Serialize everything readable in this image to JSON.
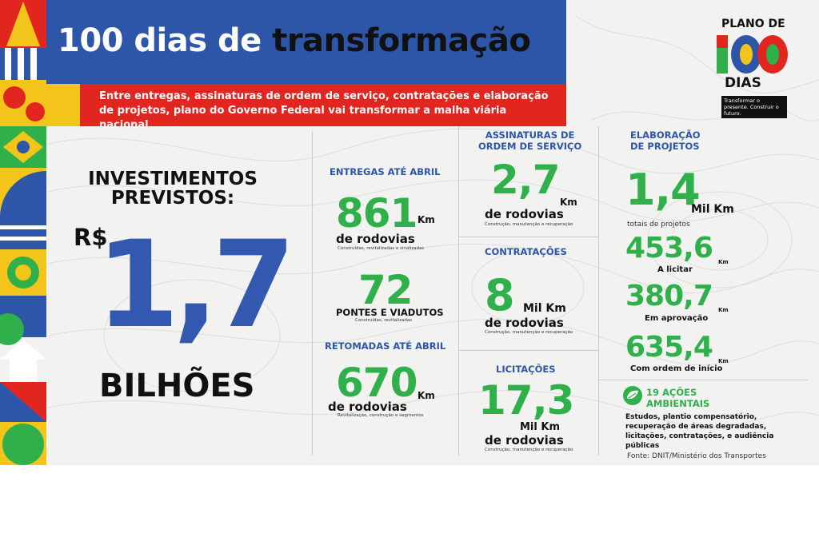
{
  "header": {
    "title_part1": "100 dias de",
    "title_part2": "transformação",
    "subtitle": "Entre entregas, assinaturas de ordem de serviço, contratações e elaboração de projetos, plano do Governo Federal vai transformar a malha viária nacional"
  },
  "logo": {
    "top": "PLANO DE",
    "number": "100",
    "bottom": "DIAS",
    "tagline": "Transformar o presente. Construir o futuro."
  },
  "investments": {
    "heading": "INVESTIMENTOS PREVISTOS:",
    "currency": "R$",
    "value": "1,7",
    "magnitude": "BILHÕES"
  },
  "col1": {
    "entregas_heading": "ENTREGAS ATÉ ABRIL",
    "entregas_value": "861",
    "entregas_unit": "Km",
    "entregas_label": "de rodovias",
    "entregas_note": "Construídas, revitalizadas e sinalizadas",
    "pontes_value": "72",
    "pontes_label": "PONTES E VIADUTOS",
    "pontes_note": "Construídas, revitalizadas",
    "retomadas_heading": "RETOMADAS ATÉ ABRIL",
    "retomadas_value": "670",
    "retomadas_unit": "Km",
    "retomadas_label": "de rodovias",
    "retomadas_note": "Revitalização, construção e segmentos"
  },
  "col2": {
    "assinaturas_heading_1": "ASSINATURAS DE",
    "assinaturas_heading_2": "ORDEM DE SERVIÇO",
    "assinaturas_value": "2,7",
    "assinaturas_unit": "Km",
    "assinaturas_label": "de rodovias",
    "assinaturas_note": "Construção, manutenção e recuperação",
    "contratacoes_heading": "CONTRATAÇÕES",
    "contratacoes_value": "8",
    "contratacoes_unit": "Mil Km",
    "contratacoes_label": "de rodovias",
    "contratacoes_note": "Construção, manutenção e recuperação",
    "licitacoes_heading": "LICITAÇÕES",
    "licitacoes_value": "17,3",
    "licitacoes_unit": "Mil Km",
    "licitacoes_label": "de rodovias",
    "licitacoes_note": "Construção, manutenção e recuperação"
  },
  "col3": {
    "heading_1": "ELABORAÇÃO",
    "heading_2": "DE PROJETOS",
    "total_value": "1,4",
    "total_unit": "Mil Km",
    "total_label": "totais de projetos",
    "licitar_value": "453,6",
    "licitar_unit": "Km",
    "licitar_label": "A licitar",
    "aprovacao_value": "380,7",
    "aprovacao_unit": "Km",
    "aprovacao_label": "Em aprovação",
    "ordem_value": "635,4",
    "ordem_unit": "Km",
    "ordem_label": "Com ordem de início",
    "acoes_1": "19 AÇÕES",
    "acoes_2": "AMBIENTAIS",
    "acoes_text": "Estudos, plantio compensatório, recuperação de áreas degradadas, licitações, contratações, e audiência públicas",
    "source": "Fonte: DNIT/Ministério dos Transportes"
  },
  "colors": {
    "blue": "#2d55a8",
    "green": "#2fb04a",
    "red": "#e0261f",
    "yellow": "#f3c51b"
  }
}
